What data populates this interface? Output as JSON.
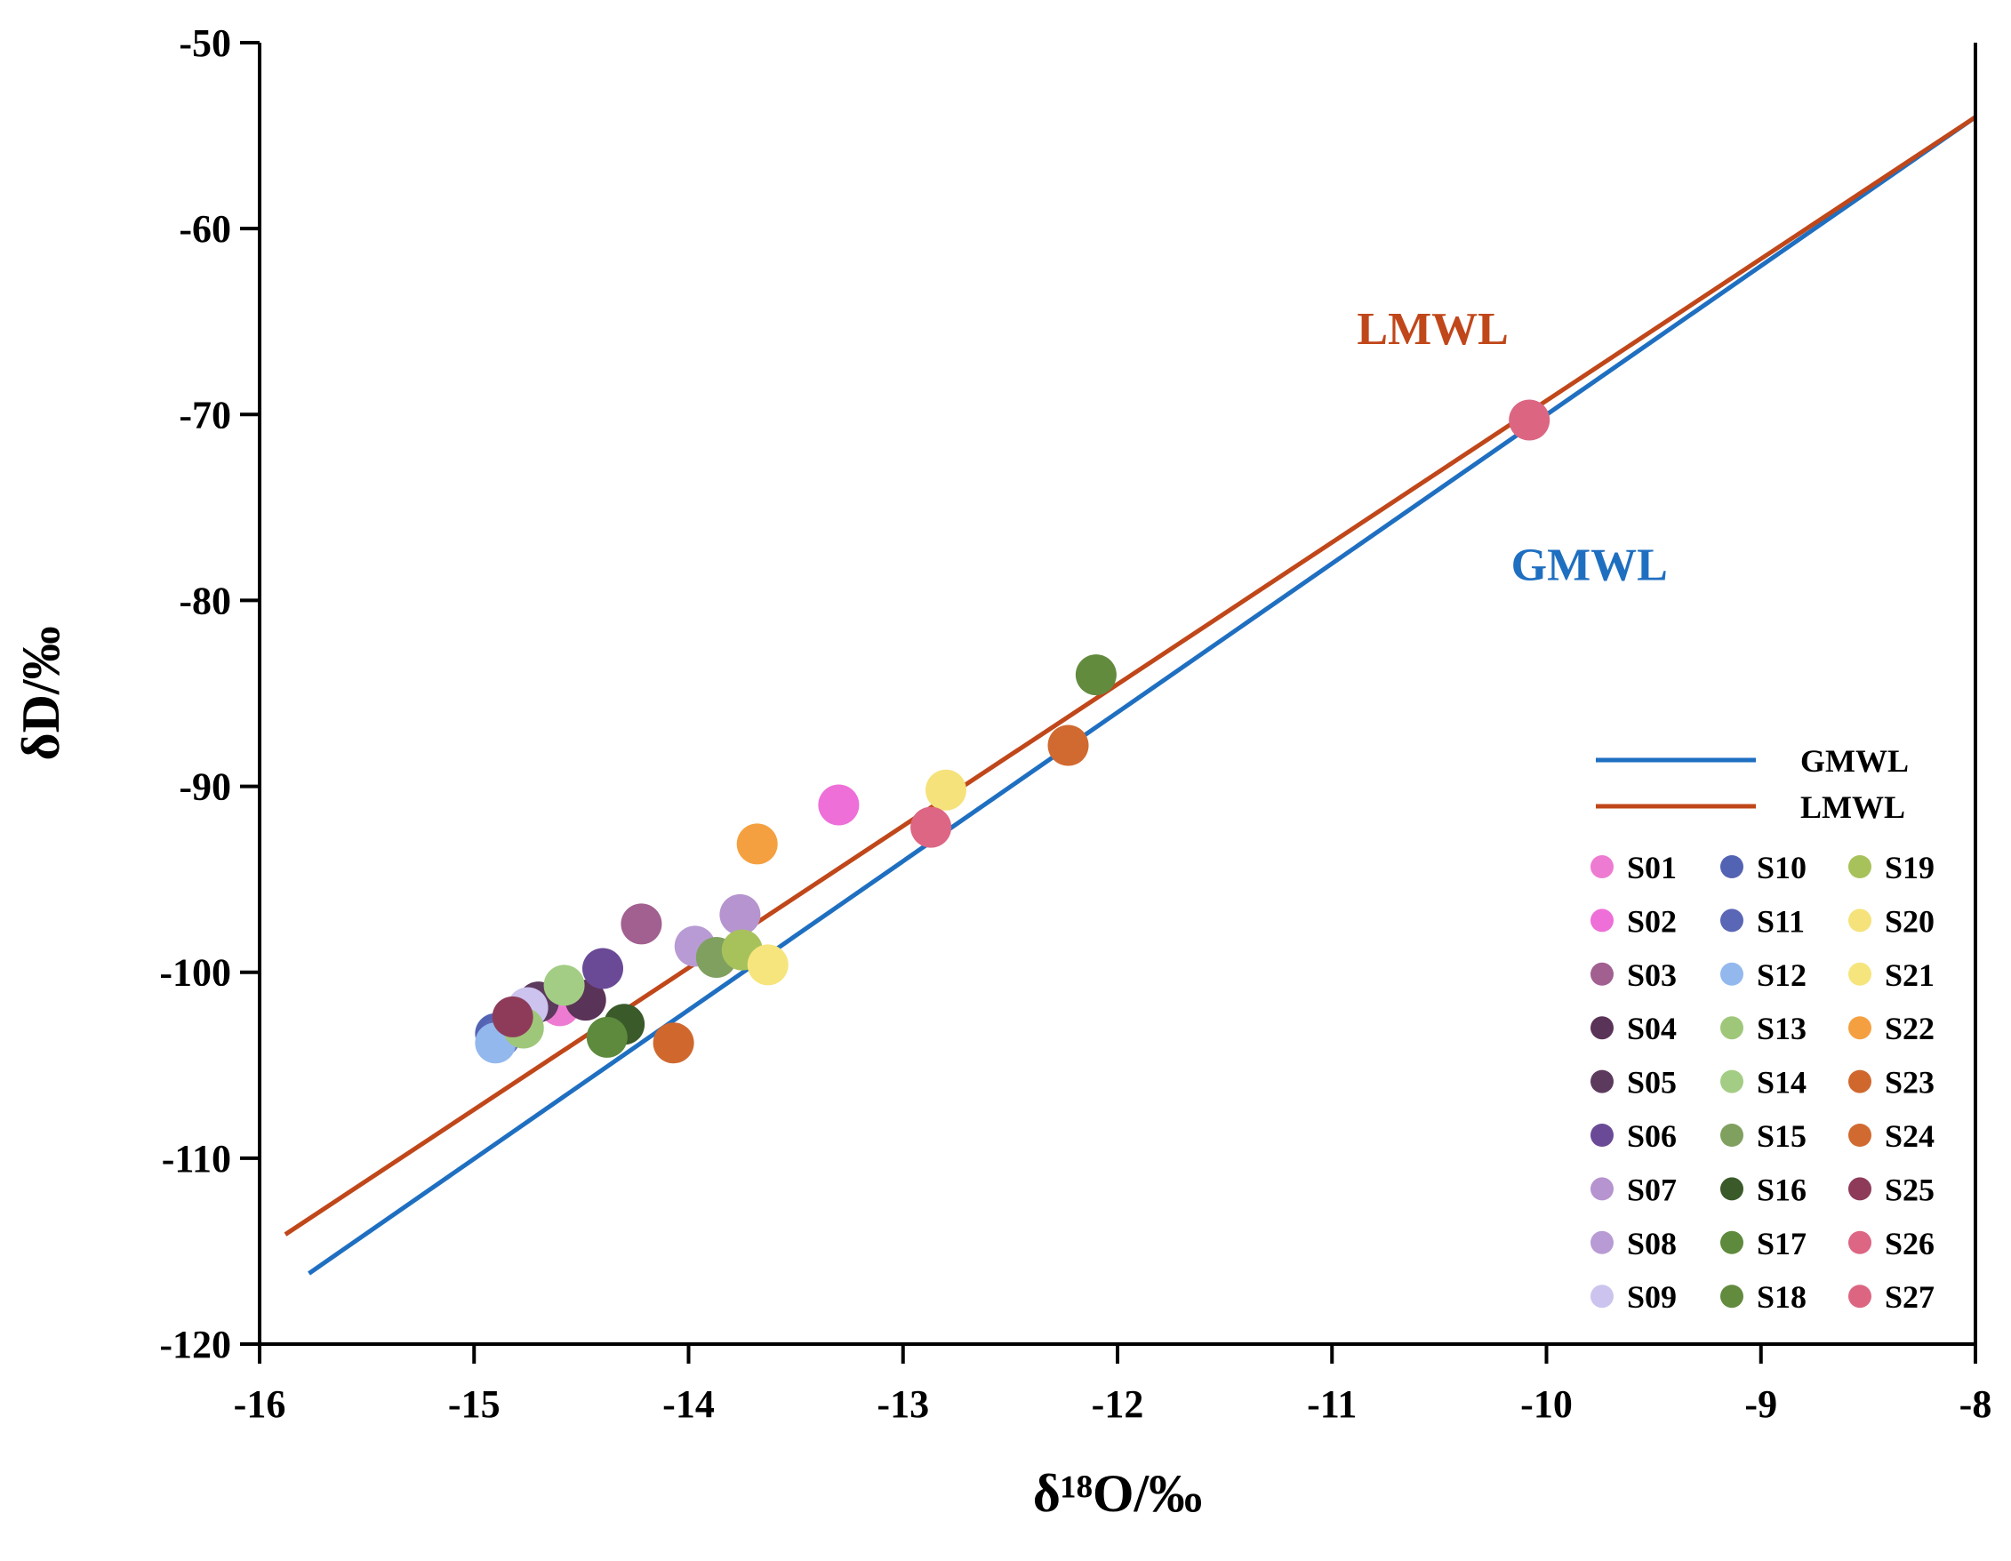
{
  "chart_data": {
    "type": "scatter",
    "xlabel": "δ¹⁸O/‰",
    "ylabel": "δD/‰",
    "xlim": [
      -16,
      -8
    ],
    "ylim": [
      -120,
      -50
    ],
    "x_ticks": [
      -16,
      -15,
      -14,
      -13,
      -12,
      -11,
      -10,
      -9,
      -8
    ],
    "y_ticks": [
      -50,
      -60,
      -70,
      -80,
      -90,
      -100,
      -110,
      -120
    ],
    "lines": [
      {
        "name": "GMWL",
        "color": "#1f6fc1",
        "x": [
          -15.77,
          -8.0
        ],
        "y": [
          -116.2,
          -54.0
        ]
      },
      {
        "name": "LMWL",
        "color": "#c0471a",
        "x": [
          -15.88,
          -8.0
        ],
        "y": [
          -114.1,
          -54.0
        ]
      }
    ],
    "annotations": [
      {
        "text": "LMWL",
        "x": -10.53,
        "y": -66.2,
        "color": "#c0471a"
      },
      {
        "text": "GMWL",
        "x": -9.8,
        "y": -78.9,
        "color": "#1f6fc1"
      }
    ],
    "legend_position": "bottom-right",
    "series": [
      {
        "name": "S01",
        "color": "#ee7bd2",
        "x": [
          -14.6
        ],
        "y": [
          -101.8
        ]
      },
      {
        "name": "S02",
        "color": "#ee6fd8",
        "x": [
          -13.3
        ],
        "y": [
          -91.0
        ]
      },
      {
        "name": "S03",
        "color": "#a16090",
        "x": [
          -14.22
        ],
        "y": [
          -97.4
        ]
      },
      {
        "name": "S04",
        "color": "#5a3358",
        "x": [
          -14.48
        ],
        "y": [
          -101.5
        ]
      },
      {
        "name": "S05",
        "color": "#5c3a5e",
        "x": [
          -14.7
        ],
        "y": [
          -101.6
        ]
      },
      {
        "name": "S06",
        "color": "#6a4a96",
        "x": [
          -14.4
        ],
        "y": [
          -99.8
        ]
      },
      {
        "name": "S07",
        "color": "#b694cf",
        "x": [
          -13.76
        ],
        "y": [
          -96.9
        ]
      },
      {
        "name": "S08",
        "color": "#b89bd4",
        "x": [
          -13.97
        ],
        "y": [
          -98.6
        ]
      },
      {
        "name": "S09",
        "color": "#ccc3ee",
        "x": [
          -14.75
        ],
        "y": [
          -101.9
        ]
      },
      {
        "name": "S10",
        "color": "#5363b4",
        "x": [
          -14.9
        ],
        "y": [
          -103.3
        ]
      },
      {
        "name": "S11",
        "color": "#5a66b6",
        "x": [
          -14.88
        ],
        "y": [
          -103.5
        ]
      },
      {
        "name": "S12",
        "color": "#93b8ee",
        "x": [
          -14.9
        ],
        "y": [
          -103.8
        ]
      },
      {
        "name": "S13",
        "color": "#9fc77a",
        "x": [
          -14.77
        ],
        "y": [
          -103.0
        ]
      },
      {
        "name": "S14",
        "color": "#a3cd84",
        "x": [
          -14.58
        ],
        "y": [
          -100.7
        ]
      },
      {
        "name": "S15",
        "color": "#80a060",
        "x": [
          -13.87
        ],
        "y": [
          -99.2
        ]
      },
      {
        "name": "S16",
        "color": "#3a5a2a",
        "x": [
          -14.3
        ],
        "y": [
          -102.8
        ]
      },
      {
        "name": "S17",
        "color": "#5d8a3c",
        "x": [
          -14.38
        ],
        "y": [
          -103.5
        ]
      },
      {
        "name": "S18",
        "color": "#628b3e",
        "x": [
          -12.1
        ],
        "y": [
          -84.0
        ]
      },
      {
        "name": "S19",
        "color": "#a7c25a",
        "x": [
          -13.75
        ],
        "y": [
          -98.8
        ]
      },
      {
        "name": "S20",
        "color": "#f5e27a",
        "x": [
          -12.8
        ],
        "y": [
          -90.2
        ]
      },
      {
        "name": "S21",
        "color": "#f6e57c",
        "x": [
          -13.63
        ],
        "y": [
          -99.6
        ]
      },
      {
        "name": "S22",
        "color": "#f5a040",
        "x": [
          -13.68
        ],
        "y": [
          -93.1
        ]
      },
      {
        "name": "S23",
        "color": "#d0682e",
        "x": [
          -14.07
        ],
        "y": [
          -103.8
        ]
      },
      {
        "name": "S24",
        "color": "#d16a30",
        "x": [
          -12.23
        ],
        "y": [
          -87.8
        ]
      },
      {
        "name": "S25",
        "color": "#8e3b5a",
        "x": [
          -14.82
        ],
        "y": [
          -102.4
        ]
      },
      {
        "name": "S26",
        "color": "#dc6683",
        "x": [
          -12.87
        ],
        "y": [
          -92.2
        ]
      },
      {
        "name": "S27",
        "color": "#dc6682",
        "x": [
          -10.08
        ],
        "y": [
          -70.3
        ]
      }
    ]
  }
}
